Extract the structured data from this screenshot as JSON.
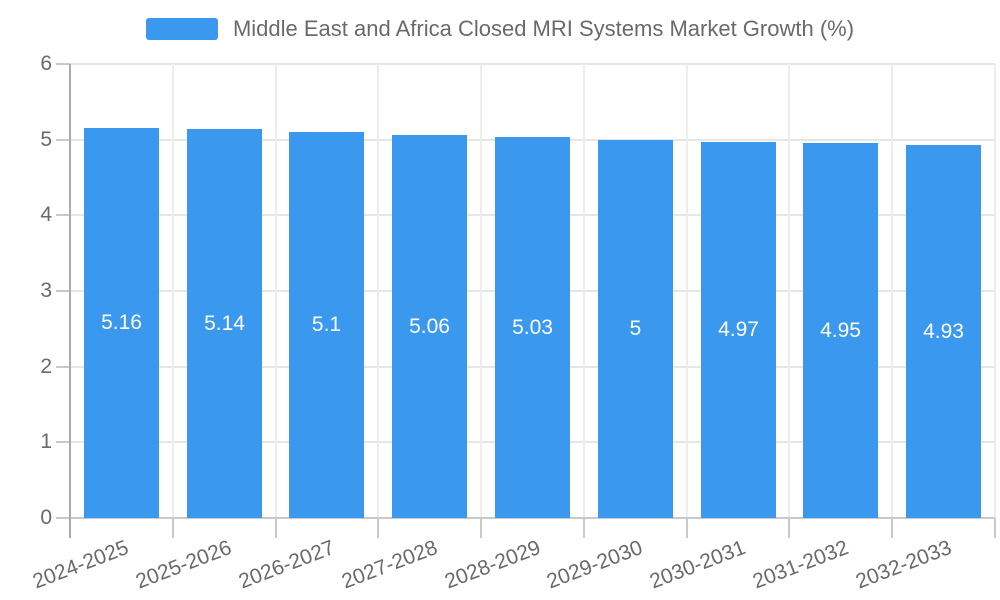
{
  "legend": {
    "label": "Middle East and Africa Closed MRI Systems Market Growth (%)"
  },
  "chart_data": {
    "type": "bar",
    "title": "Middle East and Africa Closed MRI Systems Market Growth (%)",
    "categories": [
      "2024-2025",
      "2025-2026",
      "2026-2027",
      "2027-2028",
      "2028-2029",
      "2029-2030",
      "2030-2031",
      "2031-2032",
      "2032-2033"
    ],
    "values": [
      5.16,
      5.14,
      5.1,
      5.06,
      5.03,
      5,
      4.97,
      4.95,
      4.93
    ],
    "value_labels": [
      "5.16",
      "5.14",
      "5.1",
      "5.06",
      "5.03",
      "5",
      "4.97",
      "4.95",
      "4.93"
    ],
    "xlabel": "",
    "ylabel": "",
    "ylim": [
      0,
      6
    ],
    "yticks": [
      0,
      1,
      2,
      3,
      4,
      5,
      6
    ],
    "grid": true,
    "legend_position": "top",
    "colors": {
      "bar": "#3a99ee",
      "value_label": "#ffffff",
      "text": "#6a6a6a",
      "axis": "#ababab",
      "baseline": "#c9c9c9",
      "grid_h": "#e6e6e6",
      "grid_v": "#ededed"
    }
  }
}
